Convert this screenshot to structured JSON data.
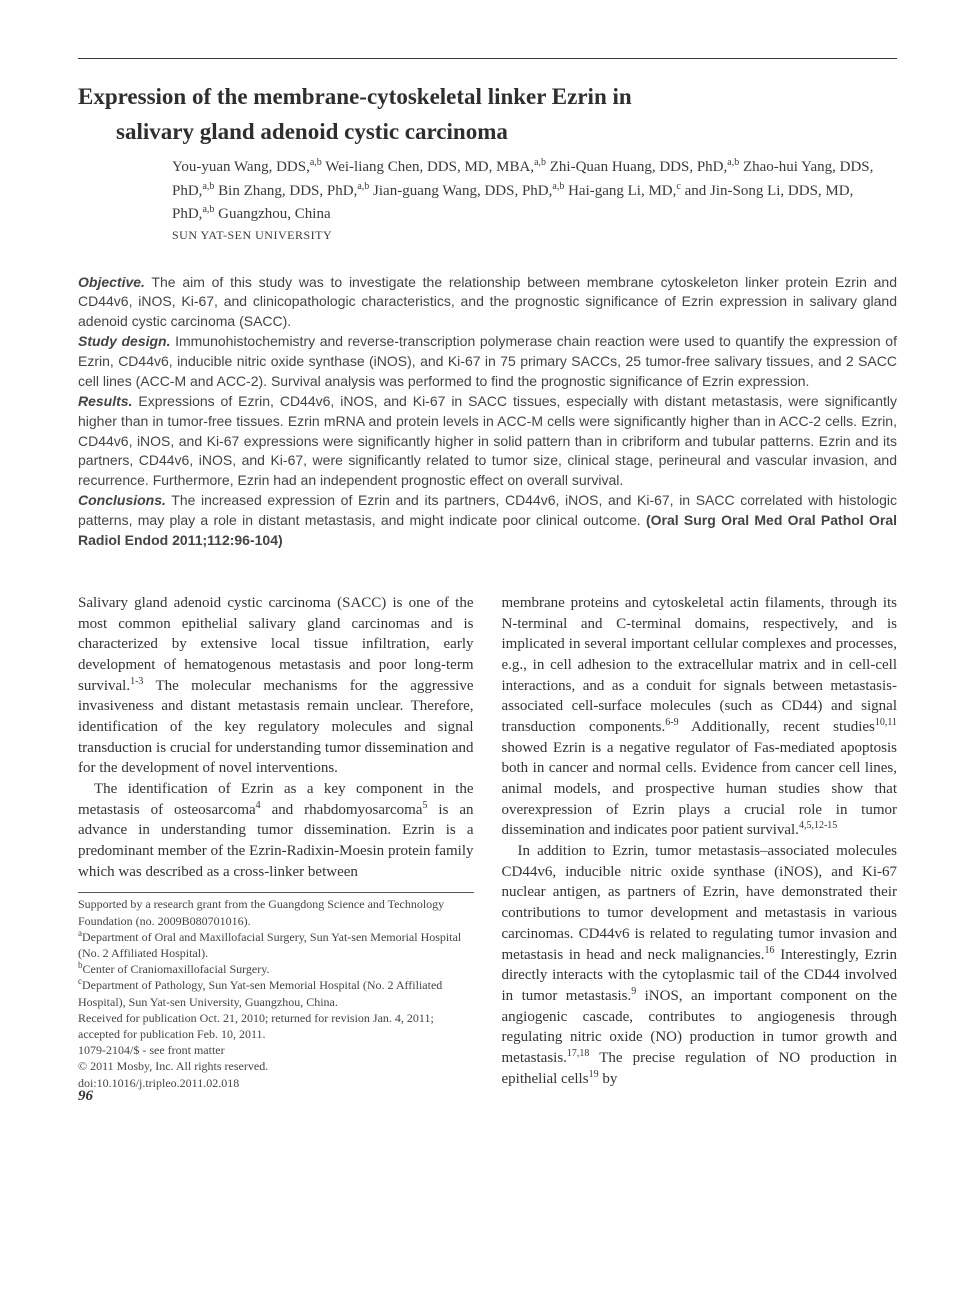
{
  "title_line1": "Expression of the membrane-cytoskeletal linker Ezrin in",
  "title_line2": "salivary gland adenoid cystic carcinoma",
  "authors_html": "You-yuan Wang, DDS,<sup>a,b</sup> Wei-liang Chen, DDS, MD, MBA,<sup>a,b</sup> Zhi-Quan Huang, DDS, PhD,<sup>a,b</sup> Zhao-hui Yang, DDS, PhD,<sup>a,b</sup> Bin Zhang, DDS, PhD,<sup>a,b</sup> Jian-guang Wang, DDS, PhD,<sup>a,b</sup> Hai-gang Li, MD,<sup>c</sup> and Jin-Song Li, DDS, MD, PhD,<sup>a,b</sup> Guangzhou, China",
  "institution": "SUN YAT-SEN UNIVERSITY",
  "abstract": {
    "objective_head": "Objective.",
    "objective": " The aim of this study was to investigate the relationship between membrane cytoskeleton linker protein Ezrin and CD44v6, iNOS, Ki-67, and clinicopathologic characteristics, and the prognostic significance of Ezrin expression in salivary gland adenoid cystic carcinoma (SACC).",
    "design_head": "Study design.",
    "design": " Immunohistochemistry and reverse-transcription polymerase chain reaction were used to quantify the expression of Ezrin, CD44v6, inducible nitric oxide synthase (iNOS), and Ki-67 in 75 primary SACCs, 25 tumor-free salivary tissues, and 2 SACC cell lines (ACC-M and ACC-2). Survival analysis was performed to find the prognostic significance of Ezrin expression.",
    "results_head": "Results.",
    "results": " Expressions of Ezrin, CD44v6, iNOS, and Ki-67 in SACC tissues, especially with distant metastasis, were significantly higher than in tumor-free tissues. Ezrin mRNA and protein levels in ACC-M cells were significantly higher than in ACC-2 cells. Ezrin, CD44v6, iNOS, and Ki-67 expressions were significantly higher in solid pattern than in cribriform and tubular patterns. Ezrin and its partners, CD44v6, iNOS, and Ki-67, were significantly related to tumor size, clinical stage, perineural and vascular invasion, and recurrence. Furthermore, Ezrin had an independent prognostic effect on overall survival.",
    "conclusions_head": "Conclusions.",
    "conclusions": " The increased expression of Ezrin and its partners, CD44v6, iNOS, and Ki-67, in SACC correlated with histologic patterns, may play a role in distant metastasis, and might indicate poor clinical outcome. ",
    "citation": "(Oral Surg Oral Med Oral Pathol Oral Radiol Endod 2011;112:96-104)"
  },
  "body": {
    "p1": "Salivary gland adenoid cystic carcinoma (SACC) is one of the most common epithelial salivary gland carcinomas and is characterized by extensive local tissue infiltration, early development of hematogenous metastasis and poor long-term survival.<sup>1-3</sup> The molecular mechanisms for the aggressive invasiveness and distant metastasis remain unclear. Therefore, identification of the key regulatory molecules and signal transduction is crucial for understanding tumor dissemination and for the development of novel interventions.",
    "p2": "The identification of Ezrin as a key component in the metastasis of osteosarcoma<sup>4</sup> and rhabdomyosarcoma<sup>5</sup> is an advance in understanding tumor dissemination. Ezrin is a predominant member of the Ezrin-Radixin-Moesin protein family which was described as a cross-linker between",
    "p3": "membrane proteins and cytoskeletal actin filaments, through its N-terminal and C-terminal domains, respectively, and is implicated in several important cellular complexes and processes, e.g., in cell adhesion to the extracellular matrix and in cell-cell interactions, and as a conduit for signals between metastasis-associated cell-surface molecules (such as CD44) and signal transduction components.<sup>6-9</sup> Additionally, recent studies<sup>10,11</sup> showed Ezrin is a negative regulator of Fas-mediated apoptosis both in cancer and normal cells. Evidence from cancer cell lines, animal models, and prospective human studies show that overexpression of Ezrin plays a crucial role in tumor dissemination and indicates poor patient survival.<sup>4,5,12-15</sup>",
    "p4": "In addition to Ezrin, tumor metastasis–associated molecules CD44v6, inducible nitric oxide synthase (iNOS), and Ki-67 nuclear antigen, as partners of Ezrin, have demonstrated their contributions to tumor development and metastasis in various carcinomas. CD44v6 is related to regulating tumor invasion and metastasis in head and neck malignancies.<sup>16</sup> Interestingly, Ezrin directly interacts with the cytoplasmic tail of the CD44 involved in tumor metastasis.<sup>9</sup> iNOS, an important component on the angiogenic cascade, contributes to angiogenesis through regulating nitric oxide (NO) production in tumor growth and metastasis.<sup>17,18</sup> The precise regulation of NO production in epithelial cells<sup>19</sup> by"
  },
  "footnotes": {
    "f1": "Supported by a research grant from the Guangdong Science and Technology Foundation (no. 2009B080701016).",
    "f2": "<sup>a</sup>Department of Oral and Maxillofacial Surgery, Sun Yat-sen Memorial Hospital (No. 2 Affiliated Hospital).",
    "f3": "<sup>b</sup>Center of Craniomaxillofacial Surgery.",
    "f4": "<sup>c</sup>Department of Pathology, Sun Yat-sen Memorial Hospital (No. 2 Affiliated Hospital), Sun Yat-sen University, Guangzhou, China.",
    "f5": "Received for publication Oct. 21, 2010; returned for revision Jan. 4, 2011; accepted for publication Feb. 10, 2011.",
    "f6": "1079-2104/$ - see front matter",
    "f7": "© 2011 Mosby, Inc. All rights reserved.",
    "f8": "doi:10.1016/j.tripleo.2011.02.018"
  },
  "page_number": "96"
}
